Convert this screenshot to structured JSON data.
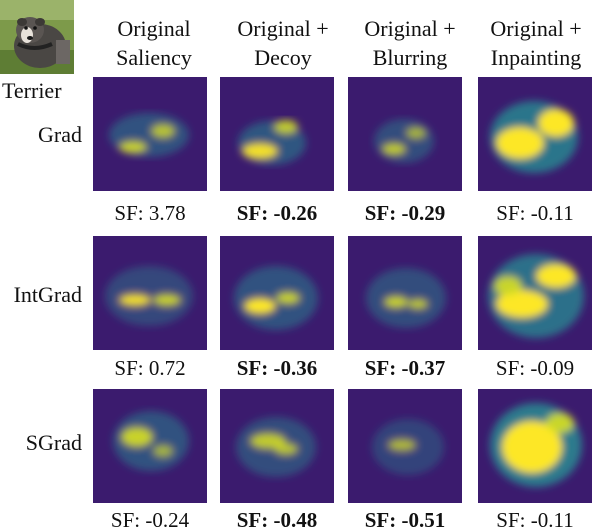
{
  "sample": {
    "label": "Terrier"
  },
  "columns": [
    {
      "line1": "Original",
      "line2": "Saliency"
    },
    {
      "line1": "Original +",
      "line2": "Decoy"
    },
    {
      "line1": "Original +",
      "line2": "Blurring"
    },
    {
      "line1": "Original +",
      "line2": "Inpainting"
    }
  ],
  "rows": [
    {
      "label": "Grad",
      "scores": [
        {
          "prefix": "SF:",
          "value": "3.78",
          "bold": false
        },
        {
          "prefix": "SF:",
          "value": "-0.26",
          "bold": true
        },
        {
          "prefix": "SF:",
          "value": "-0.29",
          "bold": true
        },
        {
          "prefix": "SF:",
          "value": "-0.11",
          "bold": false
        }
      ]
    },
    {
      "label": "IntGrad",
      "scores": [
        {
          "prefix": "SF:",
          "value": "0.72",
          "bold": false
        },
        {
          "prefix": "SF:",
          "value": "-0.36",
          "bold": true
        },
        {
          "prefix": "SF:",
          "value": "-0.37",
          "bold": true
        },
        {
          "prefix": "SF:",
          "value": "-0.09",
          "bold": false
        }
      ]
    },
    {
      "label": "SGrad",
      "scores": [
        {
          "prefix": "SF:",
          "value": "-0.24",
          "bold": false
        },
        {
          "prefix": "SF:",
          "value": "-0.48",
          "bold": true
        },
        {
          "prefix": "SF:",
          "value": "-0.51",
          "bold": true
        },
        {
          "prefix": "SF:",
          "value": "-0.11",
          "bold": false
        }
      ]
    }
  ],
  "colormap": {
    "dark": "#3b1b6e",
    "mid": "#2a7f8e",
    "bright": "#d9e021",
    "hot": "#fde725"
  }
}
